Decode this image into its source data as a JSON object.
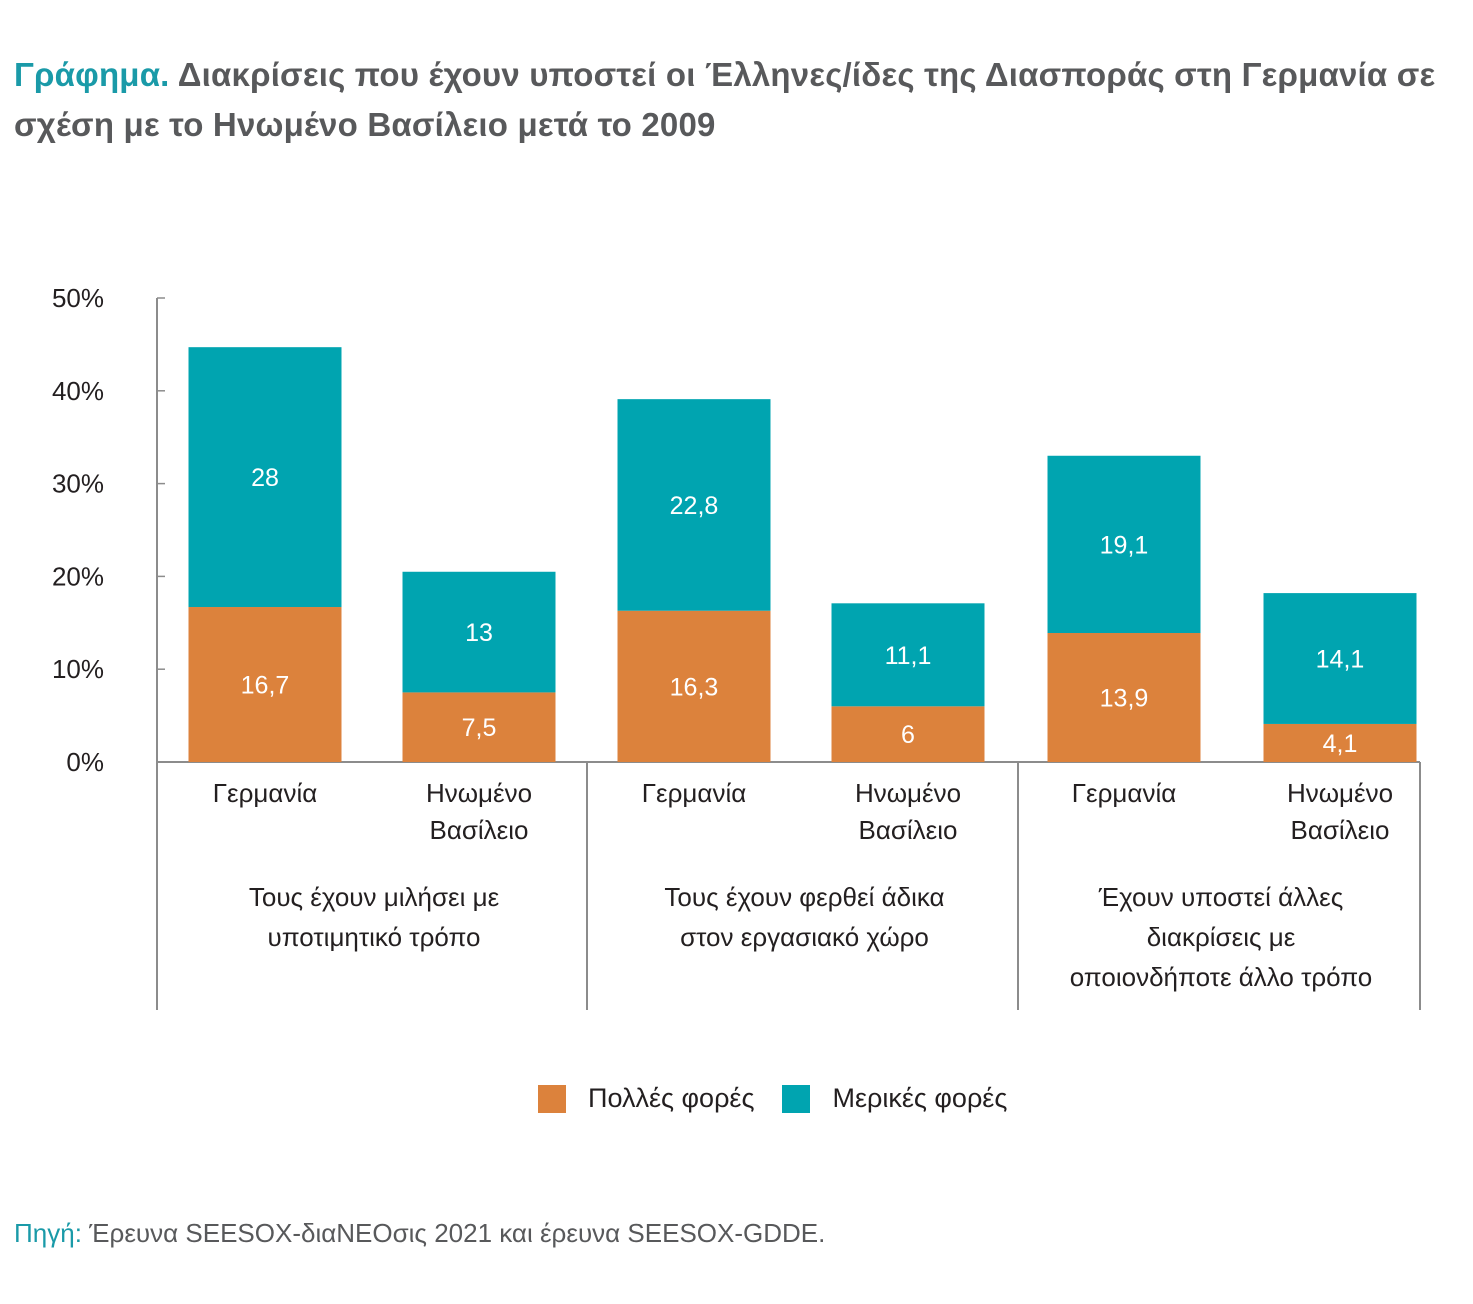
{
  "header": {
    "title_lead": "Γράφημα.",
    "title_rest": "Διακρίσεις που έχουν υποστεί οι Έλληνες/ίδες της Διασποράς στη Γερμανία σε σχέση με το Ηνωμένο Βασίλειο μετά το 2009"
  },
  "colors": {
    "accent": "#1a9aa8",
    "many_times": "#dc823c",
    "sometimes": "#00a4b0",
    "axis": "#8c8c8c",
    "text": "#231f20"
  },
  "legend": {
    "items": [
      {
        "label": "Πολλές φορές",
        "color": "#dc823c"
      },
      {
        "label": "Μερικές φορές",
        "color": "#00a4b0"
      }
    ]
  },
  "source": {
    "lead": "Πηγή:",
    "text": "Έρευνα SEESOX-διαΝΕΟσις 2021 και έρευνα SEESOX-GDDE."
  },
  "chart_data": {
    "type": "bar",
    "stacked": true,
    "title": "Διακρίσεις που έχουν υποστεί οι Έλληνες/ίδες της Διασποράς στη Γερμανία σε σχέση με το Ηνωμένο Βασίλειο μετά το 2009",
    "xlabel": "",
    "ylabel": "",
    "ylim": [
      0,
      50
    ],
    "yticks": [
      "0%",
      "10%",
      "20%",
      "30%",
      "40%",
      "50%"
    ],
    "ytick_values": [
      0,
      10,
      20,
      30,
      40,
      50
    ],
    "grid": false,
    "legend_position": "bottom",
    "groups": [
      {
        "label_lines": [
          "Τους έχουν μιλήσει με",
          "υποτιμητικό τρόπο"
        ]
      },
      {
        "label_lines": [
          "Τους έχουν φερθεί άδικα",
          "στον εργασιακό χώρο"
        ]
      },
      {
        "label_lines": [
          "Έχουν υποστεί άλλες",
          "διακρίσεις με",
          "οποιονδήποτε άλλο τρόπο"
        ]
      }
    ],
    "categories": [
      {
        "group": 0,
        "label_lines": [
          "Γερμανία"
        ]
      },
      {
        "group": 0,
        "label_lines": [
          "Ηνωμένο",
          "Βασίλειο"
        ]
      },
      {
        "group": 1,
        "label_lines": [
          "Γερμανία"
        ]
      },
      {
        "group": 1,
        "label_lines": [
          "Ηνωμένο",
          "Βασίλειο"
        ]
      },
      {
        "group": 2,
        "label_lines": [
          "Γερμανία"
        ]
      },
      {
        "group": 2,
        "label_lines": [
          "Ηνωμένο",
          "Βασίλειο"
        ]
      }
    ],
    "series": [
      {
        "name": "Πολλές φορές",
        "color": "#dc823c",
        "values": [
          16.7,
          7.5,
          16.3,
          6,
          13.9,
          4.1
        ],
        "labels": [
          "16,7",
          "7,5",
          "16,3",
          "6",
          "13,9",
          "4,1"
        ]
      },
      {
        "name": "Μερικές φορές",
        "color": "#00a4b0",
        "values": [
          28,
          13,
          22.8,
          11.1,
          19.1,
          14.1
        ],
        "labels": [
          "28",
          "13",
          "22,8",
          "11,1",
          "19,1",
          "14,1"
        ]
      }
    ]
  }
}
